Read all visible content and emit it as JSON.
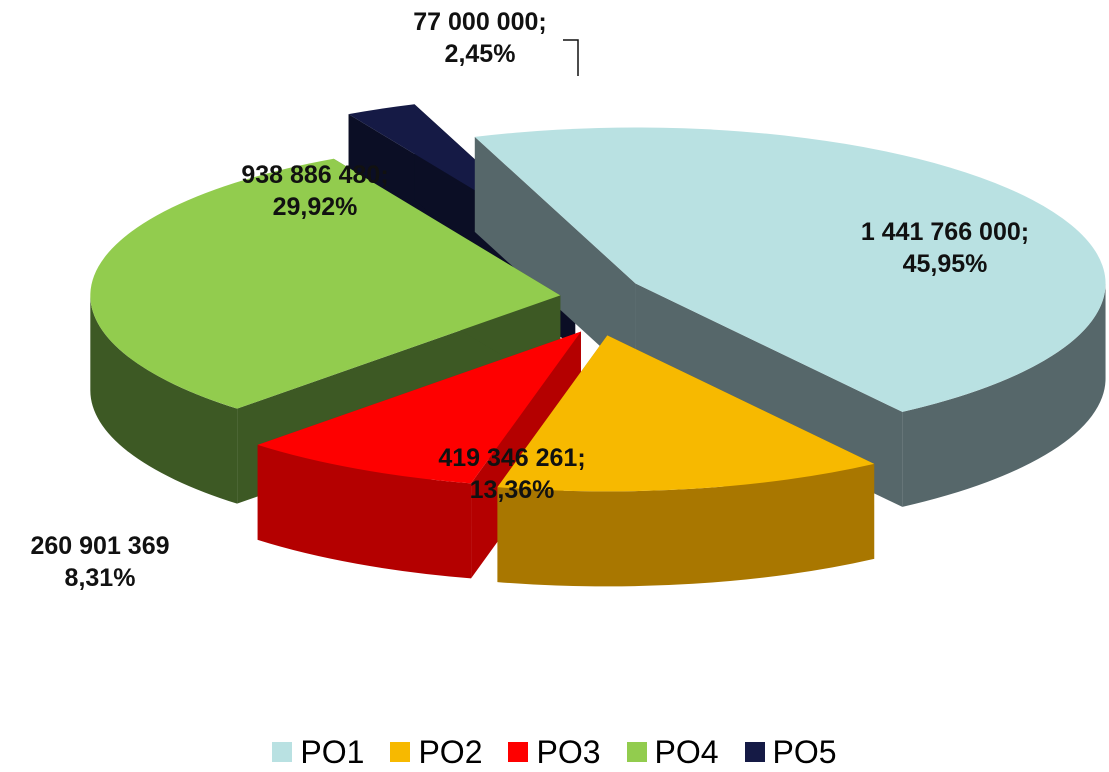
{
  "chart_data": {
    "type": "pie",
    "title": "",
    "categories": [
      "PO1",
      "PO2",
      "PO3",
      "PO4",
      "PO5"
    ],
    "values": [
      1441766000,
      419346261,
      260901369,
      938886480,
      77000000
    ],
    "percents": [
      45.95,
      13.36,
      8.31,
      29.92,
      2.45
    ],
    "data_labels": [
      [
        "1 441 766 000;",
        "45,95%"
      ],
      [
        "419 346 261;",
        "13,36%"
      ],
      [
        "260 901 369",
        "8,31%"
      ],
      [
        "938 886 480;",
        "29,92%"
      ],
      [
        "77 000 000;",
        "2,45%"
      ]
    ],
    "colors": [
      "#b9e1e2",
      "#f7b900",
      "#fe0000",
      "#92cc4e",
      "#151a45"
    ],
    "side_colors": [
      "#56676a",
      "#a97700",
      "#b40000",
      "#3d5924",
      "#0b0e25"
    ],
    "exploded": true,
    "style": "3d",
    "legend_position": "bottom"
  }
}
